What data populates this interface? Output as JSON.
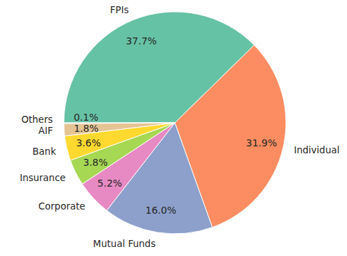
{
  "chart_data": {
    "type": "pie",
    "categories": [
      "FPIs",
      "Individual",
      "Mutual Funds",
      "Corporate",
      "Insurance",
      "Bank",
      "AIF",
      "Others"
    ],
    "values": [
      37.7,
      31.9,
      16.0,
      5.2,
      3.8,
      3.6,
      1.8,
      0.1
    ],
    "value_labels": [
      "37.7%",
      "31.9%",
      "16.0%",
      "5.2%",
      "3.8%",
      "3.6%",
      "1.8%",
      "0.1%"
    ],
    "colors": [
      "#66c2a5",
      "#fc8d62",
      "#8da0cb",
      "#e78ac3",
      "#a6d854",
      "#ffd92f",
      "#e5c494",
      "#b3b3b3"
    ],
    "data_labels": true
  }
}
